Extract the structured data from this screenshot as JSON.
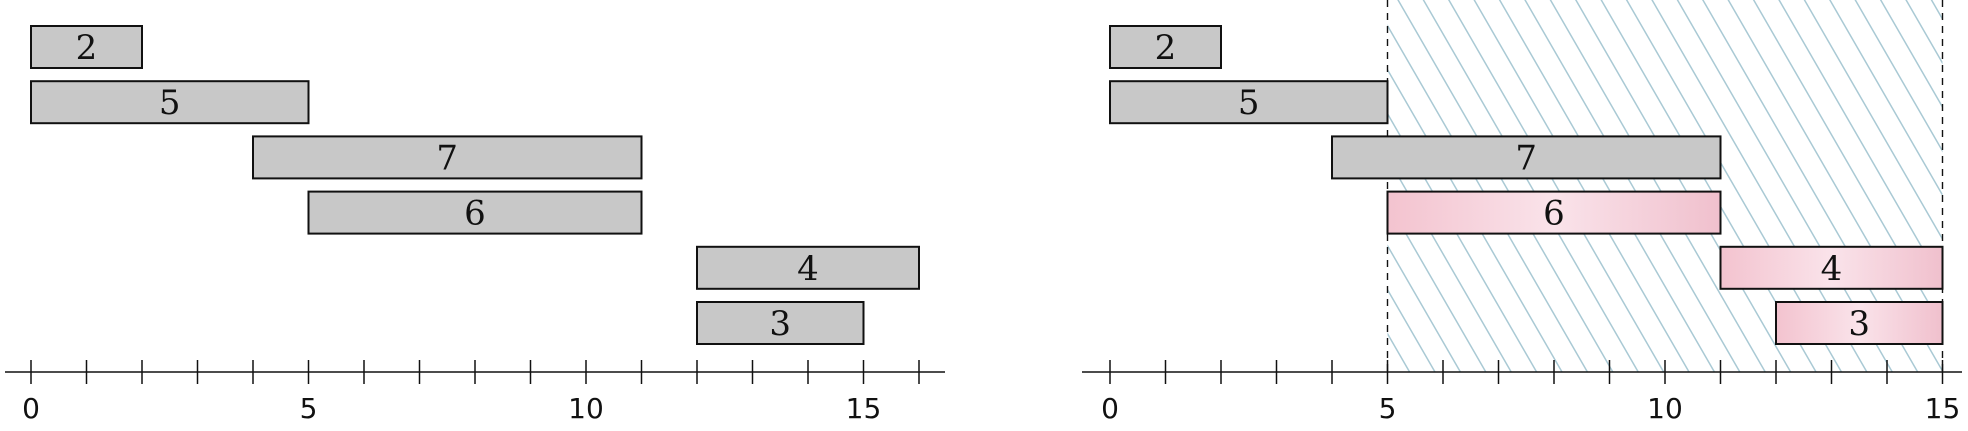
{
  "colors": {
    "bar_fill": "#c8c8c8",
    "highlight_fill": "#f3c9d3",
    "highlight_fill_light": "#fae6eb",
    "hatch": "#a9c9d4",
    "stroke": "#111111"
  },
  "panels": [
    {
      "x_range": [
        0,
        16
      ],
      "tick_labels": [
        {
          "value": 0,
          "text": "0"
        },
        {
          "value": 5,
          "text": "5"
        },
        {
          "value": 10,
          "text": "10"
        },
        {
          "value": 15,
          "text": "15"
        }
      ],
      "hatch_region": null,
      "intervals": [
        {
          "label": "2",
          "start": 0,
          "end": 2,
          "highlight": false
        },
        {
          "label": "5",
          "start": 0,
          "end": 5,
          "highlight": false
        },
        {
          "label": "7",
          "start": 4,
          "end": 11,
          "highlight": false
        },
        {
          "label": "6",
          "start": 5,
          "end": 11,
          "highlight": false
        },
        {
          "label": "4",
          "start": 12,
          "end": 16,
          "highlight": false
        },
        {
          "label": "3",
          "start": 12,
          "end": 15,
          "highlight": false
        }
      ]
    },
    {
      "x_range": [
        0,
        15
      ],
      "tick_labels": [
        {
          "value": 0,
          "text": "0"
        },
        {
          "value": 5,
          "text": "5"
        },
        {
          "value": 10,
          "text": "10"
        },
        {
          "value": 15,
          "text": "15"
        }
      ],
      "hatch_region": [
        5,
        15
      ],
      "intervals": [
        {
          "label": "2",
          "start": 0,
          "end": 2,
          "highlight": false
        },
        {
          "label": "5",
          "start": 0,
          "end": 5,
          "highlight": false
        },
        {
          "label": "7",
          "start": 4,
          "end": 11,
          "highlight": false
        },
        {
          "label": "6",
          "start": 5,
          "end": 11,
          "highlight": true
        },
        {
          "label": "4",
          "start": 11,
          "end": 15,
          "highlight": true
        },
        {
          "label": "3",
          "start": 12,
          "end": 15,
          "highlight": true
        }
      ]
    }
  ]
}
